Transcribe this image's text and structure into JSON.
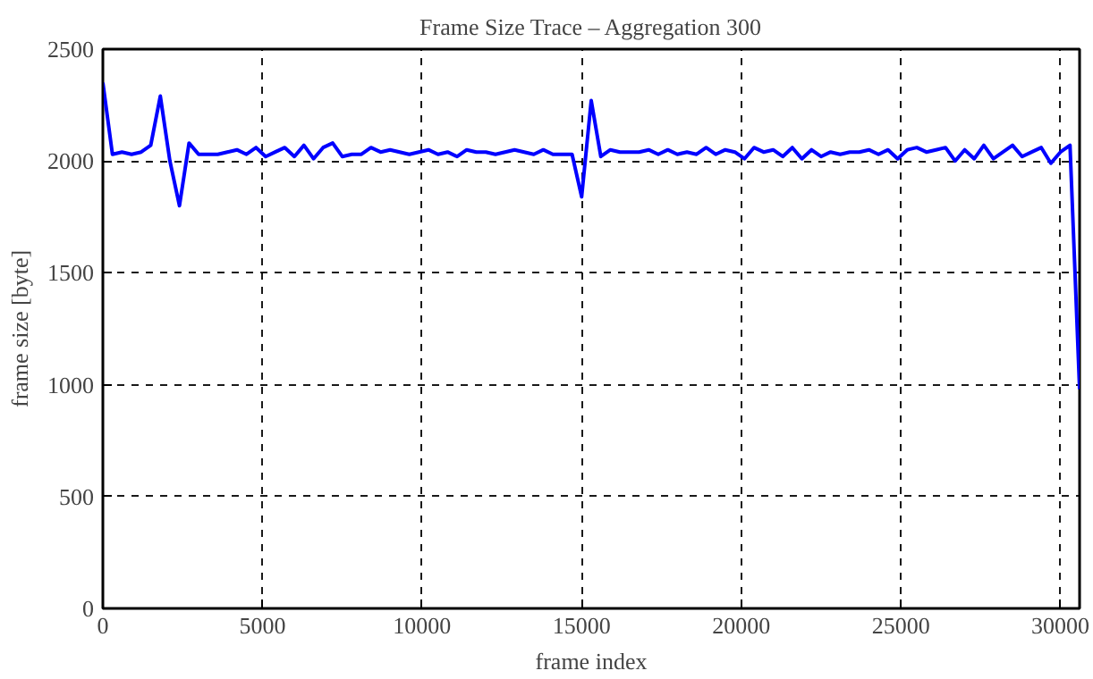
{
  "chart_data": {
    "type": "line",
    "title": "Frame Size Trace – Aggregation 300",
    "xlabel": "frame index",
    "ylabel": "frame size [byte]",
    "xlim": [
      0,
      30600
    ],
    "ylim": [
      0,
      2500
    ],
    "xticks": [
      0,
      5000,
      10000,
      15000,
      20000,
      25000,
      30000
    ],
    "yticks": [
      0,
      500,
      1000,
      1500,
      2000,
      2500
    ],
    "grid": true,
    "marker": "none",
    "line_style": "solid",
    "series": [
      {
        "color": "#0000ff",
        "x": [
          0,
          300,
          600,
          900,
          1200,
          1500,
          1800,
          2100,
          2400,
          2700,
          3000,
          3300,
          3600,
          3900,
          4200,
          4500,
          4800,
          5100,
          5400,
          5700,
          6000,
          6300,
          6600,
          6900,
          7200,
          7500,
          7800,
          8100,
          8400,
          8700,
          9000,
          9300,
          9600,
          9900,
          10200,
          10500,
          10800,
          11100,
          11400,
          11700,
          12000,
          12300,
          12600,
          12900,
          13200,
          13500,
          13800,
          14100,
          14400,
          14700,
          15000,
          15300,
          15600,
          15900,
          16200,
          16500,
          16800,
          17100,
          17400,
          17700,
          18000,
          18300,
          18600,
          18900,
          19200,
          19500,
          19800,
          20100,
          20400,
          20700,
          21000,
          21300,
          21600,
          21900,
          22200,
          22500,
          22800,
          23100,
          23400,
          23700,
          24000,
          24300,
          24600,
          24900,
          25200,
          25500,
          25800,
          26100,
          26400,
          26700,
          27000,
          27300,
          27600,
          27900,
          28200,
          28500,
          28800,
          29100,
          29400,
          29700,
          30000,
          30300,
          30600
        ],
        "values": [
          2350,
          2030,
          2040,
          2030,
          2040,
          2070,
          2290,
          2000,
          1800,
          2080,
          2030,
          2030,
          2030,
          2040,
          2050,
          2030,
          2060,
          2020,
          2040,
          2060,
          2020,
          2070,
          2010,
          2060,
          2080,
          2020,
          2030,
          2030,
          2060,
          2040,
          2050,
          2040,
          2030,
          2040,
          2050,
          2030,
          2040,
          2020,
          2050,
          2040,
          2040,
          2030,
          2040,
          2050,
          2040,
          2030,
          2050,
          2030,
          2030,
          2030,
          1840,
          2270,
          2020,
          2050,
          2040,
          2040,
          2040,
          2050,
          2030,
          2050,
          2030,
          2040,
          2030,
          2060,
          2030,
          2050,
          2040,
          2010,
          2060,
          2040,
          2050,
          2020,
          2060,
          2010,
          2050,
          2020,
          2040,
          2030,
          2040,
          2040,
          2050,
          2030,
          2050,
          2010,
          2050,
          2060,
          2040,
          2050,
          2060,
          2000,
          2050,
          2010,
          2070,
          2010,
          2040,
          2070,
          2020,
          2040,
          2060,
          1990,
          2040,
          2070,
          980
        ]
      }
    ]
  }
}
